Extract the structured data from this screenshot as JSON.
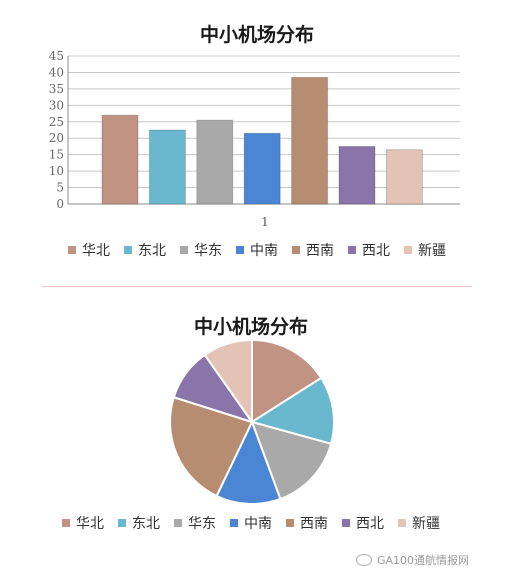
{
  "chart_data": [
    {
      "type": "bar",
      "title": "中小机场分布",
      "categories": [
        "1"
      ],
      "ylim": [
        0,
        45
      ],
      "yticks": [
        0,
        5,
        10,
        15,
        20,
        25,
        30,
        35,
        40,
        45
      ],
      "grid": true,
      "legend": "bottom",
      "series": [
        {
          "name": "华北",
          "values": [
            27
          ],
          "color": "#c09383"
        },
        {
          "name": "东北",
          "values": [
            22.5
          ],
          "color": "#6ab8cf"
        },
        {
          "name": "华东",
          "values": [
            25.5
          ],
          "color": "#a9a9a9"
        },
        {
          "name": "中南",
          "values": [
            21.5
          ],
          "color": "#4a86d4"
        },
        {
          "name": "西南",
          "values": [
            38.5
          ],
          "color": "#b78d72"
        },
        {
          "name": "西北",
          "values": [
            17.5
          ],
          "color": "#8a75aa"
        },
        {
          "name": "新疆",
          "values": [
            16.5
          ],
          "color": "#e2c3b6"
        }
      ]
    },
    {
      "type": "pie",
      "title": "中小机场分布",
      "legend": "bottom",
      "labels": [
        "华北",
        "东北",
        "华东",
        "中南",
        "西南",
        "西北",
        "新疆"
      ],
      "values": [
        27,
        22.5,
        25.5,
        21.5,
        38.5,
        17.5,
        16.5
      ],
      "colors": [
        "#c09383",
        "#6ab8cf",
        "#a9a9a9",
        "#4a86d4",
        "#b78d72",
        "#8a75aa",
        "#e2c3b6"
      ]
    }
  ],
  "watermark": {
    "text": "GA100通航情报网"
  }
}
